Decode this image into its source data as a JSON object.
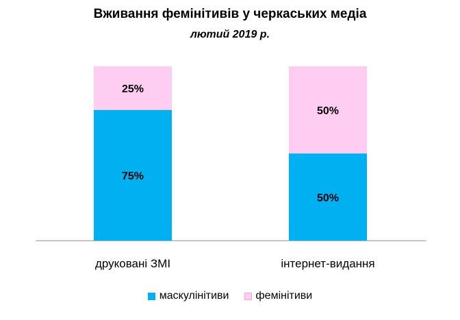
{
  "chart_data": {
    "type": "bar",
    "stacked": true,
    "title": "Вживання фемінітивів у черкаських медіа",
    "subtitle": "лютий 2019 р.",
    "categories": [
      "друковані ЗМІ",
      "інтернет-видання"
    ],
    "series": [
      {
        "name": "маскулінітиви",
        "values": [
          75,
          50
        ],
        "labels": [
          "75%",
          "50%"
        ],
        "color": "#00B0F0"
      },
      {
        "name": "фемінітиви",
        "values": [
          25,
          50
        ],
        "labels": [
          "25%",
          "50%"
        ],
        "color": "#FFCCF2"
      }
    ],
    "ylim": [
      0,
      100
    ],
    "grid": false,
    "legend_position": "bottom"
  }
}
